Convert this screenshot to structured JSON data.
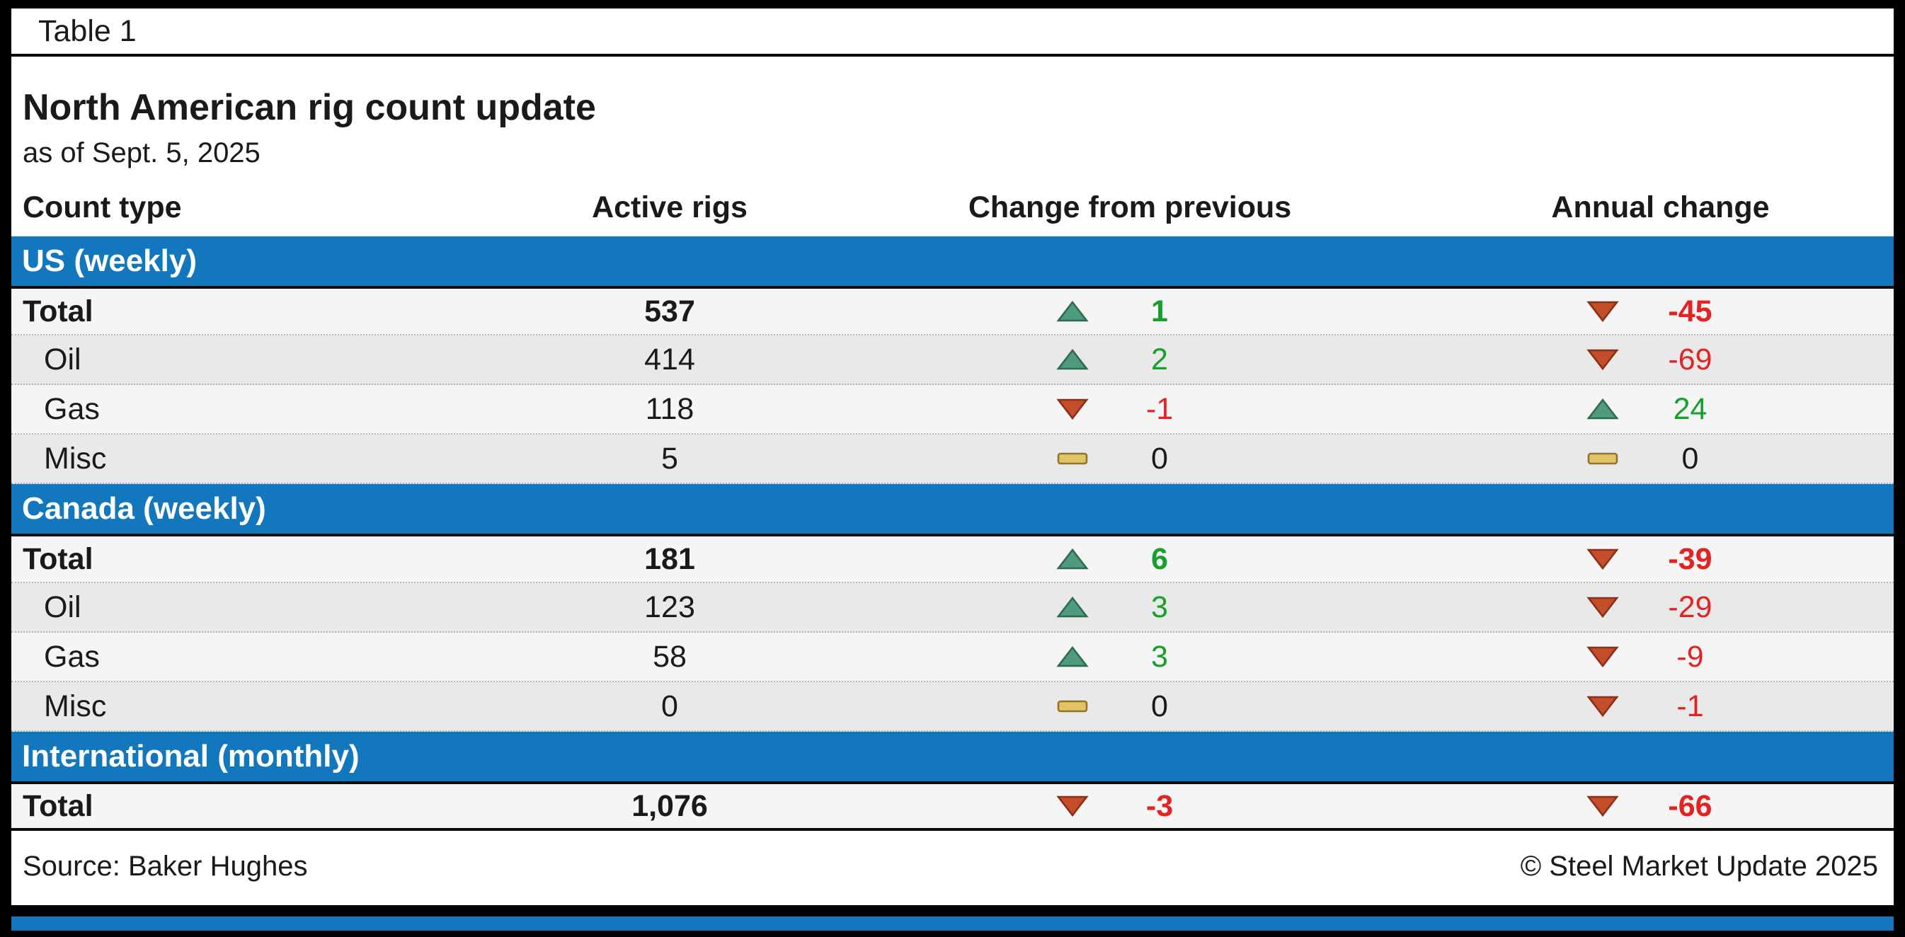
{
  "caption": "Table 1",
  "chart_data": {
    "type": "table",
    "title": "North American rig count update",
    "subtitle": "as of Sept. 5, 2025",
    "columns": [
      "Count type",
      "Active rigs",
      "Change from previous",
      "Annual change"
    ],
    "sections": [
      {
        "label": "US (weekly)",
        "rows": [
          {
            "type": "Total",
            "total": true,
            "active": "537",
            "change": {
              "dir": "up",
              "value": "1"
            },
            "annual": {
              "dir": "down",
              "value": "-45"
            }
          },
          {
            "type": "Oil",
            "total": false,
            "active": "414",
            "change": {
              "dir": "up",
              "value": "2"
            },
            "annual": {
              "dir": "down",
              "value": "-69"
            }
          },
          {
            "type": "Gas",
            "total": false,
            "active": "118",
            "change": {
              "dir": "down",
              "value": "-1"
            },
            "annual": {
              "dir": "up",
              "value": "24"
            }
          },
          {
            "type": "Misc",
            "total": false,
            "active": "5",
            "change": {
              "dir": "flat",
              "value": "0"
            },
            "annual": {
              "dir": "flat",
              "value": "0"
            }
          }
        ]
      },
      {
        "label": "Canada (weekly)",
        "rows": [
          {
            "type": "Total",
            "total": true,
            "active": "181",
            "change": {
              "dir": "up",
              "value": "6"
            },
            "annual": {
              "dir": "down",
              "value": "-39"
            }
          },
          {
            "type": "Oil",
            "total": false,
            "active": "123",
            "change": {
              "dir": "up",
              "value": "3"
            },
            "annual": {
              "dir": "down",
              "value": "-29"
            }
          },
          {
            "type": "Gas",
            "total": false,
            "active": "58",
            "change": {
              "dir": "up",
              "value": "3"
            },
            "annual": {
              "dir": "down",
              "value": "-9"
            }
          },
          {
            "type": "Misc",
            "total": false,
            "active": "0",
            "change": {
              "dir": "flat",
              "value": "0"
            },
            "annual": {
              "dir": "down",
              "value": "-1"
            }
          }
        ]
      },
      {
        "label": "International (monthly)",
        "rows": [
          {
            "type": "Total",
            "total": true,
            "active": "1,076",
            "change": {
              "dir": "down",
              "value": "-3"
            },
            "annual": {
              "dir": "down",
              "value": "-66"
            }
          }
        ]
      }
    ]
  },
  "footer": {
    "source": "Source: Baker Hughes",
    "copyright": "© Steel Market Update 2025"
  },
  "colors": {
    "section_bar": "#1277bd",
    "positive": "#17a02c",
    "negative": "#e32221",
    "zero": "#1a1a1a",
    "up_fill": "#4f9b7c",
    "up_stroke": "#2f6b50",
    "down_fill": "#c44d2a",
    "down_stroke": "#8a2f18",
    "flat_fill": "#e2c466",
    "flat_stroke": "#8f752c",
    "row_light": "#f5f5f5",
    "row_dark": "#e9e9e9"
  }
}
